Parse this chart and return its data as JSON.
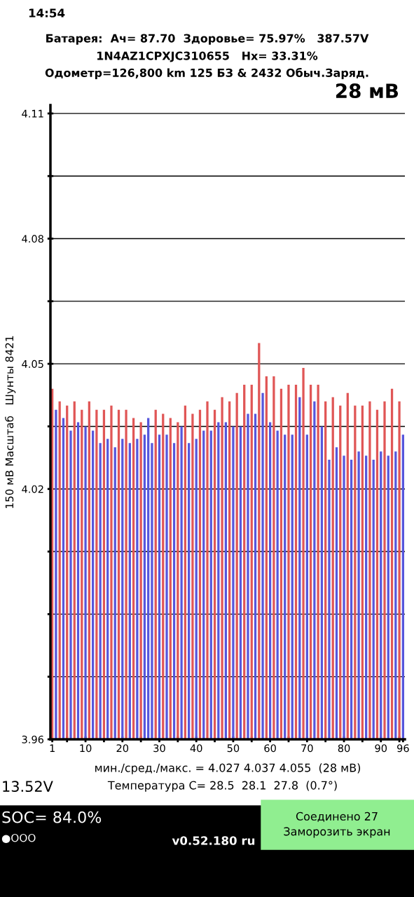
{
  "chart_data": {
    "type": "bar",
    "title": "Батарея:  Ач= 87.70  Здоровье= 75.97%   387.57V",
    "subtitle": "1N4AZ1CPXJC310655   Hx= 33.31%\nОдометр=126,800 km 125 БЗ & 2432 Обыч.Заряд.",
    "ylabel": "150 мВ Масштаб   Шунты 8421",
    "annotations": [
      "28 мВ",
      "мин./сред./макс. = 4.027 4.037 4.055  (28 мВ)",
      "Температура C= 28.5  28.1  27.8  (0.7°)",
      "13.52V",
      "SOC= 84.0%",
      "●OOO",
      "v0.52.180 ru",
      "Соединено 27\nЗаморозить экран",
      "14:54"
    ],
    "x": [
      1,
      2,
      3,
      4,
      5,
      6,
      7,
      8,
      9,
      10,
      11,
      12,
      13,
      14,
      15,
      16,
      17,
      18,
      19,
      20,
      21,
      22,
      23,
      24,
      25,
      26,
      27,
      28,
      29,
      30,
      31,
      32,
      33,
      34,
      35,
      36,
      37,
      38,
      39,
      40,
      41,
      42,
      43,
      44,
      45,
      46,
      47,
      48,
      49,
      50,
      51,
      52,
      53,
      54,
      55,
      56,
      57,
      58,
      59,
      60,
      61,
      62,
      63,
      64,
      65,
      66,
      67,
      68,
      69,
      70,
      71,
      72,
      73,
      74,
      75,
      76,
      77,
      78,
      79,
      80,
      81,
      82,
      83,
      84,
      85,
      86,
      87,
      88,
      89,
      90,
      91,
      92,
      93,
      94,
      95,
      96
    ],
    "values": [
      4.044,
      4.039,
      4.041,
      4.037,
      4.04,
      4.034,
      4.041,
      4.036,
      4.039,
      4.035,
      4.041,
      4.034,
      4.039,
      4.031,
      4.039,
      4.032,
      4.04,
      4.03,
      4.039,
      4.032,
      4.039,
      4.031,
      4.037,
      4.032,
      4.036,
      4.033,
      4.037,
      4.031,
      4.039,
      4.033,
      4.038,
      4.033,
      4.037,
      4.031,
      4.036,
      4.035,
      4.04,
      4.031,
      4.038,
      4.032,
      4.039,
      4.034,
      4.041,
      4.034,
      4.039,
      4.036,
      4.042,
      4.036,
      4.041,
      4.035,
      4.043,
      4.035,
      4.045,
      4.038,
      4.045,
      4.038,
      4.055,
      4.043,
      4.047,
      4.036,
      4.047,
      4.034,
      4.044,
      4.033,
      4.045,
      4.033,
      4.045,
      4.042,
      4.049,
      4.033,
      4.045,
      4.041,
      4.045,
      4.035,
      4.041,
      4.027,
      4.042,
      4.03,
      4.04,
      4.028,
      4.043,
      4.027,
      4.04,
      4.029,
      4.04,
      4.028,
      4.041,
      4.027,
      4.039,
      4.029,
      4.041,
      4.028,
      4.044,
      4.029,
      4.041,
      4.033
    ],
    "colors": [
      "#e05656",
      "#5656dc",
      "#e05656",
      "#5656dc",
      "#e05656",
      "#5656dc",
      "#e05656",
      "#5656dc",
      "#e05656",
      "#5656dc",
      "#e05656",
      "#5656dc",
      "#e05656",
      "#5656dc",
      "#e05656",
      "#5656dc",
      "#e05656",
      "#5656dc",
      "#e05656",
      "#5656dc",
      "#e05656",
      "#5656dc",
      "#e05656",
      "#5656dc",
      "#e05656",
      "#5656dc",
      "#5656dc",
      "#5656dc",
      "#e05656",
      "#5656dc",
      "#e05656",
      "#5656dc",
      "#e05656",
      "#5656dc",
      "#e05656",
      "#5656dc",
      "#e05656",
      "#5656dc",
      "#e05656",
      "#5656dc",
      "#e05656",
      "#5656dc",
      "#e05656",
      "#5656dc",
      "#e05656",
      "#5656dc",
      "#e05656",
      "#5656dc",
      "#e05656",
      "#5656dc",
      "#e05656",
      "#5656dc",
      "#e05656",
      "#5656dc",
      "#e05656",
      "#5656dc",
      "#e05656",
      "#5656dc",
      "#e05656",
      "#5656dc",
      "#e05656",
      "#5656dc",
      "#e05656",
      "#5656dc",
      "#e05656",
      "#5656dc",
      "#e05656",
      "#5656dc",
      "#e05656",
      "#5656dc",
      "#e05656",
      "#5656dc",
      "#e05656",
      "#5656dc",
      "#e05656",
      "#5656dc",
      "#e05656",
      "#5656dc",
      "#e05656",
      "#5656dc",
      "#e05656",
      "#5656dc",
      "#e05656",
      "#5656dc",
      "#e05656",
      "#5656dc",
      "#e05656",
      "#5656dc",
      "#e05656",
      "#5656dc",
      "#e05656",
      "#5656dc",
      "#e05656",
      "#5656dc",
      "#e05656",
      "#5656dc"
    ],
    "xlim": [
      0.5,
      96.5
    ],
    "xticks": [
      1,
      {
        "value": 5,
        "label": null
      },
      10,
      {
        "value": 15,
        "label": null
      },
      20,
      {
        "value": 25,
        "label": null
      },
      30,
      {
        "value": 35,
        "label": null
      },
      40,
      {
        "value": 45,
        "label": null
      },
      50,
      {
        "value": 55,
        "label": null
      },
      60,
      {
        "value": 65,
        "label": null
      },
      70,
      {
        "value": 75,
        "label": null
      },
      80,
      {
        "value": 85,
        "label": null
      },
      90,
      {
        "value": 95,
        "label": null
      },
      96
    ],
    "ylim": [
      3.96,
      4.112
    ],
    "yticks": [
      3.96,
      {
        "value": 3.975,
        "label": null
      },
      {
        "value": 3.99,
        "label": null
      },
      {
        "value": 4.005,
        "label": null
      },
      4.02,
      {
        "value": 4.035,
        "label": null
      },
      4.05,
      {
        "value": 4.065,
        "label": null
      },
      4.08,
      {
        "value": 4.095,
        "label": null
      },
      4.11
    ],
    "grid": "y"
  }
}
